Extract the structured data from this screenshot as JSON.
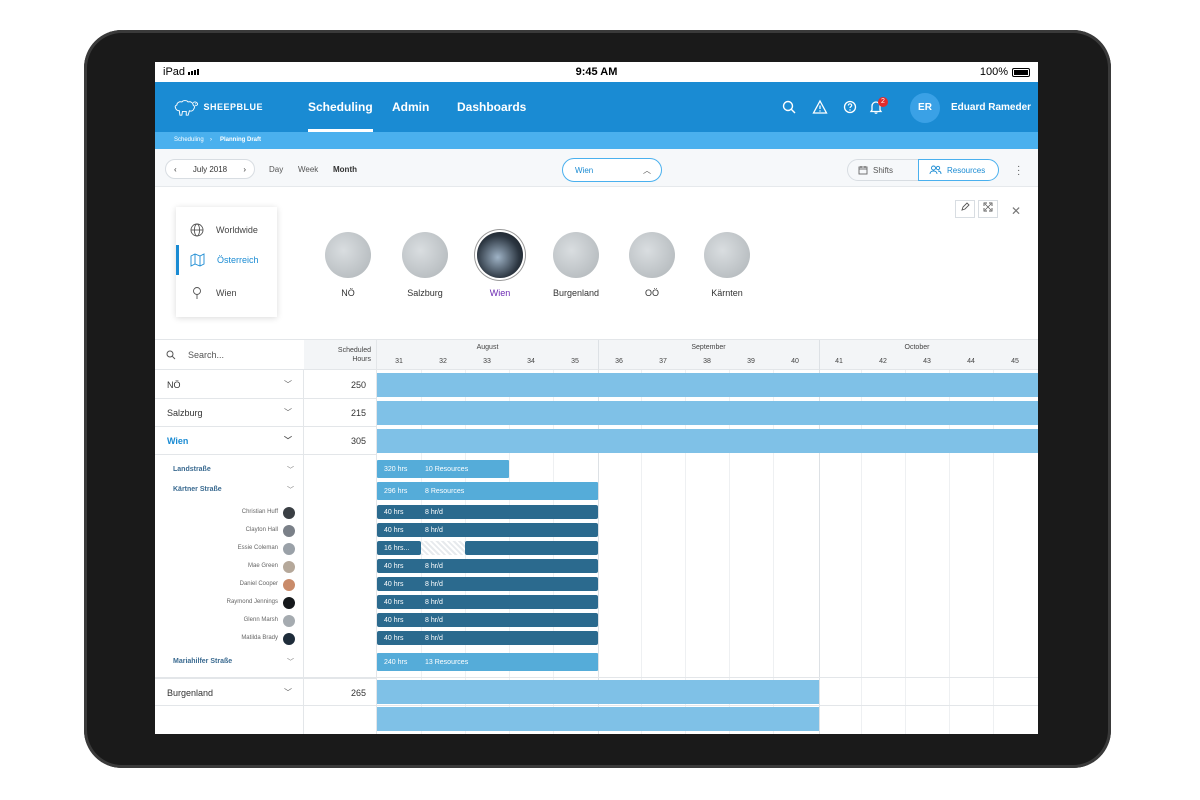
{
  "status_bar": {
    "carrier": "iPad",
    "time": "9:45 AM",
    "battery": "100%"
  },
  "nav": {
    "brand": "SHEEPBLUE",
    "tabs": [
      {
        "label": "Scheduling",
        "active": true
      },
      {
        "label": "Admin",
        "active": false
      },
      {
        "label": "Dashboards",
        "active": false
      }
    ],
    "notification_count": "2",
    "user_initials": "ER",
    "user_name": "Eduard Rameder"
  },
  "breadcrumb": [
    "Scheduling",
    "Planning Draft"
  ],
  "toolbar": {
    "period": "July 2018",
    "views": [
      "Day",
      "Week",
      "Month"
    ],
    "active_view": "Month",
    "location": "Wien",
    "shifts_label": "Shifts",
    "resources_label": "Resources"
  },
  "region_menu": [
    {
      "label": "Worldwide",
      "icon": "globe-icon"
    },
    {
      "label": "Österreich",
      "icon": "map-icon",
      "active": true
    },
    {
      "label": "Wien",
      "icon": "pin-icon"
    }
  ],
  "cities": [
    "NÖ",
    "Salzburg",
    "Wien",
    "Burgenland",
    "OÖ",
    "Kärnten"
  ],
  "active_city": "Wien",
  "gantt": {
    "search_placeholder": "Search...",
    "hours_header_1": "Scheduled",
    "hours_header_2": "Hours",
    "months": [
      "August",
      "September",
      "October"
    ],
    "weeks": [
      "31",
      "32",
      "33",
      "34",
      "35",
      "36",
      "37",
      "38",
      "39",
      "40",
      "41",
      "42",
      "43",
      "44",
      "45"
    ],
    "regions": [
      {
        "label": "NÖ",
        "hours": "250"
      },
      {
        "label": "Salzburg",
        "hours": "215"
      },
      {
        "label": "Wien",
        "hours": "305",
        "active": true
      }
    ],
    "districts": [
      {
        "label": "Landstraße",
        "hrs": "320 hrs",
        "detail": "10 Resources"
      },
      {
        "label": "Kärtner Straße",
        "hrs": "296 hrs",
        "detail": "8 Resources"
      },
      {
        "label": "Mariahilfer Straße",
        "hrs": "240 hrs",
        "detail": "13 Resources"
      }
    ],
    "people": [
      {
        "name": "Christian Huff",
        "hrs": "40 hrs",
        "detail": "8 hr/d",
        "color": "#3a3f44"
      },
      {
        "name": "Clayton Hall",
        "hrs": "40 hrs",
        "detail": "8 hr/d",
        "color": "#7a8088"
      },
      {
        "name": "Essie Coleman",
        "hrs": "16 hrs...",
        "detail": "",
        "color": "#9aa1a8"
      },
      {
        "name": "Mae Green",
        "hrs": "40 hrs",
        "detail": "8 hr/d",
        "color": "#b5a89a"
      },
      {
        "name": "Daniel Cooper",
        "hrs": "40 hrs",
        "detail": "8 hr/d",
        "color": "#c98b6a"
      },
      {
        "name": "Raymond Jennings",
        "hrs": "40 hrs",
        "detail": "8 hr/d",
        "color": "#15181b"
      },
      {
        "name": "Glenn Marsh",
        "hrs": "40 hrs",
        "detail": "8 hr/d",
        "color": "#a5abb0"
      },
      {
        "name": "Matilda Brady",
        "hrs": "40 hrs",
        "detail": "8 hr/d",
        "color": "#1e2c3a"
      }
    ],
    "burgenland": {
      "label": "Burgenland",
      "hours": "265"
    }
  }
}
